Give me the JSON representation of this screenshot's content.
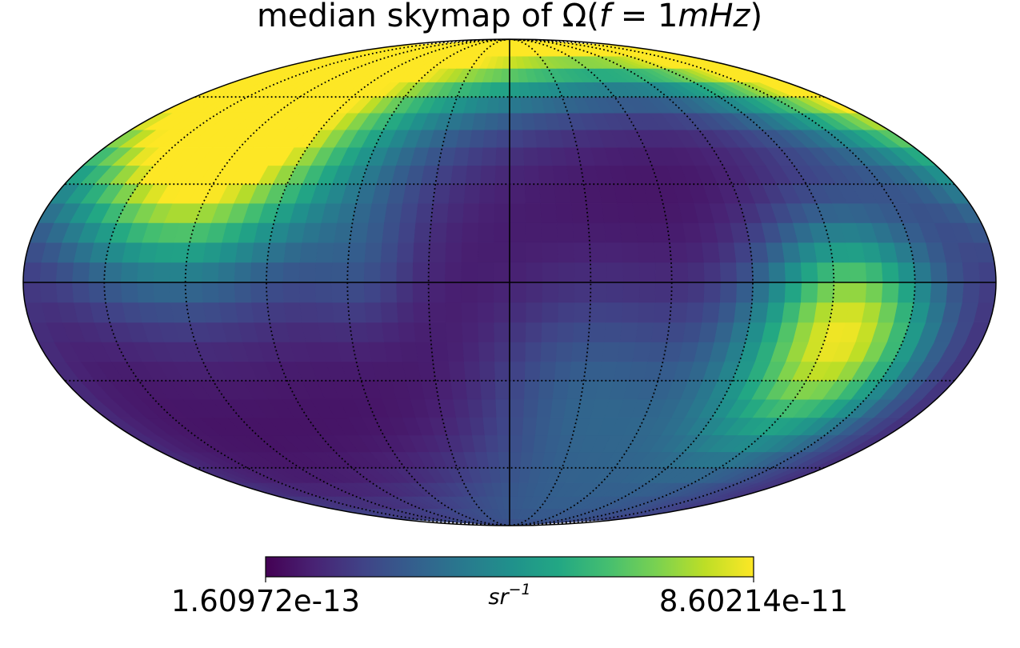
{
  "chart_data": {
    "type": "heatmap",
    "projection": "mollweide",
    "title": {
      "prefix": "median skymap of Ω(",
      "italic_f": "f",
      "equals": " = ",
      "one": "1",
      "italic_unit": "mHz",
      "suffix": ")"
    },
    "colormap": "viridis",
    "colorbar": {
      "min_label": "1.60972e-13",
      "max_label": "8.60214e-11",
      "unit_base": "sr",
      "unit_exp": "−1",
      "min": 1.60972e-13,
      "max": 8.60214e-11
    },
    "graticule": {
      "meridians_deg": [
        -150,
        -120,
        -90,
        -60,
        -30,
        30,
        60,
        90,
        120,
        150
      ],
      "parallels_deg": [
        -60,
        -30,
        30,
        60
      ],
      "central_lines": true,
      "style": "dotted"
    },
    "hotspots": [
      {
        "lon": 130,
        "lat": 45,
        "value": 1.0,
        "spread_deg": 28
      },
      {
        "lon": -128,
        "lat": -13,
        "value": 0.73,
        "spread_deg": 22
      },
      {
        "lon": 0,
        "lat": 82,
        "value": 0.55,
        "spread_deg": 18
      },
      {
        "lon": 90,
        "lat": 50,
        "value": 0.28,
        "spread_deg": 35
      },
      {
        "lon": -110,
        "lat": -35,
        "value": 0.32,
        "spread_deg": 28
      },
      {
        "lon": -30,
        "lat": -35,
        "value": 0.25,
        "spread_deg": 25
      },
      {
        "lon": 55,
        "lat": 5,
        "value": 0.12,
        "spread_deg": 15
      },
      {
        "lon": 0,
        "lat": -80,
        "value": 0.15,
        "spread_deg": 18
      },
      {
        "lon": -165,
        "lat": 70,
        "value": 0.45,
        "spread_deg": 20
      }
    ]
  }
}
